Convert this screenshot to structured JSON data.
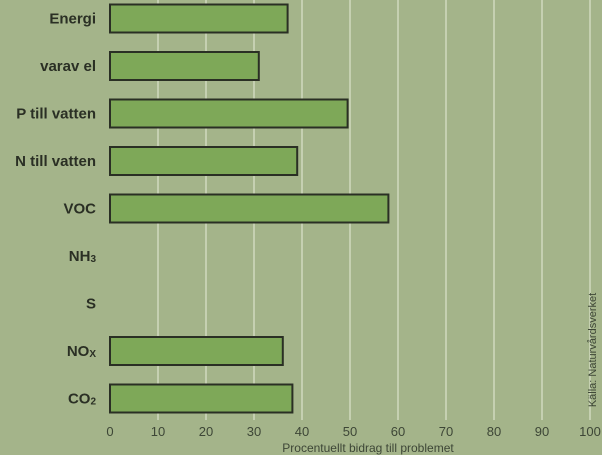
{
  "chart_data": {
    "type": "bar",
    "orientation": "horizontal",
    "categories": [
      {
        "label": "Energi",
        "sub": ""
      },
      {
        "label": "varav el",
        "sub": ""
      },
      {
        "label": "P till vatten",
        "sub": ""
      },
      {
        "label": "N till vatten",
        "sub": ""
      },
      {
        "label": "VOC",
        "sub": ""
      },
      {
        "label": "NH",
        "sub": "3"
      },
      {
        "label": "S",
        "sub": ""
      },
      {
        "label": "NO",
        "sub": "X"
      },
      {
        "label": "CO",
        "sub": "2"
      }
    ],
    "values": [
      37,
      31,
      49.5,
      39,
      58,
      null,
      null,
      36,
      38
    ],
    "xlabel": "Procentuellt bidrag till problemet",
    "xlim": [
      0,
      100
    ],
    "xticks": [
      0,
      10,
      20,
      30,
      40,
      50,
      60,
      70,
      80,
      90,
      100
    ],
    "grid": "vertical",
    "source": "Källa: Naturvårdsverket",
    "colors": {
      "background": "#a4b48a",
      "bar_fill": "#7ea858",
      "bar_stroke": "#2a2f24",
      "gridline": "#e6ecd8",
      "text": "#2a2f24"
    }
  }
}
